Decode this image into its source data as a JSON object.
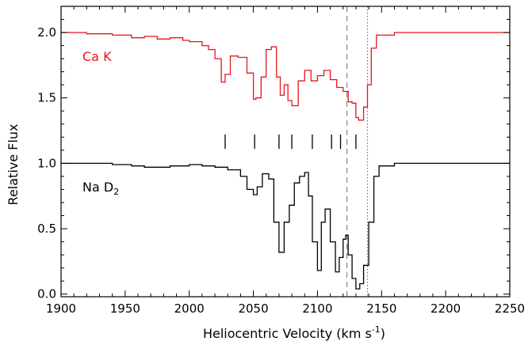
{
  "chart_data": {
    "type": "line",
    "xlabel": "Heliocentric Velocity (km s",
    "xlabel_sup": "-1",
    "xlabel_tail": ")",
    "ylabel": "Relative Flux",
    "xlim": [
      1900,
      2250
    ],
    "ylim": [
      -0.02,
      2.2
    ],
    "x_ticks": [
      "1900",
      "1950",
      "2000",
      "2050",
      "2100",
      "2150",
      "2200",
      "2250"
    ],
    "y_ticks": [
      "0.0",
      "0.5",
      "1.0",
      "1.5",
      "2.0"
    ],
    "series": [
      {
        "name": "Ca K",
        "color": "#e8141c",
        "step": true,
        "x": [
          1900,
          1920,
          1940,
          1955,
          1965,
          1975,
          1985,
          1995,
          2000,
          2010,
          2015,
          2020,
          2025,
          2028,
          2032,
          2038,
          2045,
          2050,
          2052,
          2056,
          2060,
          2064,
          2068,
          2071,
          2074,
          2077,
          2080,
          2085,
          2090,
          2095,
          2100,
          2105,
          2110,
          2115,
          2120,
          2124,
          2127,
          2130,
          2132,
          2136,
          2139,
          2142,
          2146,
          2160,
          2180,
          2200,
          2220,
          2240,
          2250
        ],
        "y": [
          2.0,
          1.99,
          1.98,
          1.96,
          1.97,
          1.95,
          1.96,
          1.94,
          1.93,
          1.9,
          1.87,
          1.8,
          1.62,
          1.68,
          1.82,
          1.81,
          1.69,
          1.49,
          1.5,
          1.66,
          1.87,
          1.89,
          1.66,
          1.52,
          1.6,
          1.48,
          1.44,
          1.63,
          1.71,
          1.63,
          1.67,
          1.71,
          1.64,
          1.58,
          1.55,
          1.47,
          1.46,
          1.35,
          1.33,
          1.43,
          1.6,
          1.88,
          1.98,
          2.0,
          2.0,
          2.0,
          2.0,
          2.0,
          2.0
        ]
      },
      {
        "name": "Na D",
        "name_sub": "2",
        "color": "#000000",
        "step": true,
        "x": [
          1900,
          1920,
          1940,
          1955,
          1965,
          1985,
          2000,
          2010,
          2020,
          2030,
          2040,
          2045,
          2050,
          2053,
          2057,
          2062,
          2066,
          2070,
          2074,
          2078,
          2082,
          2086,
          2090,
          2093,
          2096,
          2100,
          2103,
          2106,
          2110,
          2114,
          2117,
          2120,
          2122,
          2124,
          2127,
          2130,
          2133,
          2136,
          2140,
          2144,
          2148,
          2160,
          2180,
          2200,
          2220,
          2240,
          2250
        ],
        "y": [
          1.0,
          1.0,
          0.99,
          0.98,
          0.97,
          0.98,
          0.99,
          0.98,
          0.97,
          0.95,
          0.9,
          0.8,
          0.76,
          0.82,
          0.92,
          0.88,
          0.55,
          0.32,
          0.55,
          0.68,
          0.85,
          0.9,
          0.93,
          0.75,
          0.4,
          0.18,
          0.55,
          0.65,
          0.4,
          0.17,
          0.28,
          0.42,
          0.45,
          0.3,
          0.12,
          0.04,
          0.08,
          0.22,
          0.55,
          0.9,
          0.98,
          1.0,
          1.0,
          1.0,
          1.0,
          1.0,
          1.0
        ]
      }
    ],
    "component_ticks": [
      2028,
      2051,
      2070,
      2080,
      2096,
      2111,
      2118,
      2130
    ],
    "reference_lines": [
      {
        "x": 2123,
        "style": "dashed",
        "color": "#888888"
      },
      {
        "x": 2139,
        "style": "dotted",
        "color": "#cc33cc"
      }
    ],
    "grid": false
  }
}
